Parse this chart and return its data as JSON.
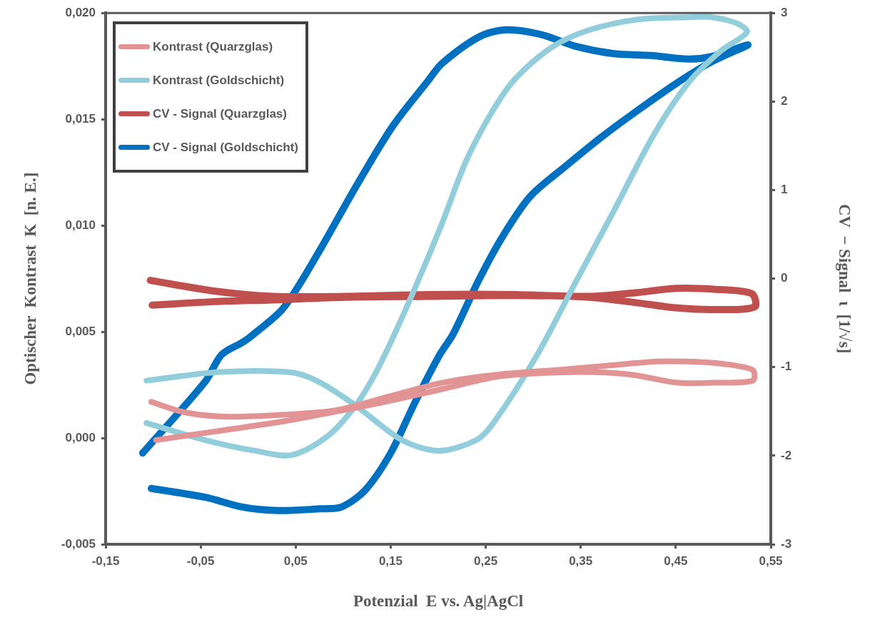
{
  "chart_data": {
    "type": "line",
    "xlabel": "Potenzial  E vs. Ag|AgCl",
    "ylabel": "Optischer  Kontrast  K  [n. E.]",
    "y2label": "CV  − Signal  ι  [1/√s]",
    "xlim": [
      -0.15,
      0.55
    ],
    "xticks": [
      {
        "value": -0.15,
        "label": "-0,15"
      },
      {
        "value": -0.05,
        "label": "-0,05"
      },
      {
        "value": 0.05,
        "label": "0,05"
      },
      {
        "value": 0.15,
        "label": "0,15"
      },
      {
        "value": 0.25,
        "label": "0,25"
      },
      {
        "value": 0.35,
        "label": "0,35"
      },
      {
        "value": 0.45,
        "label": "0,45"
      },
      {
        "value": 0.55,
        "label": "0,55"
      }
    ],
    "ylim": [
      -0.005,
      0.02
    ],
    "yticks": [
      {
        "value": -0.005,
        "label": "-0,005"
      },
      {
        "value": 0,
        "label": "0,000"
      },
      {
        "value": 0.005,
        "label": "0,005"
      },
      {
        "value": 0.01,
        "label": "0,010"
      },
      {
        "value": 0.015,
        "label": "0,015"
      },
      {
        "value": 0.02,
        "label": "0,020"
      }
    ],
    "y2lim": [
      -3,
      3
    ],
    "y2ticks": [
      -3,
      -2,
      -1,
      0,
      1,
      2,
      3
    ],
    "grid": false,
    "legend": "top left",
    "marker": "none",
    "line_style": "solid",
    "series": [
      {
        "name": "Kontrast (Quarzglas)",
        "color": "#e29494",
        "x": [
          -0.102,
          -0.066,
          -0.021,
          0.039,
          0.092,
          0.144,
          0.204,
          0.265,
          0.325,
          0.377,
          0.43,
          0.46,
          0.497,
          0.531,
          0.531,
          0.49,
          0.452,
          0.4,
          0.34,
          0.265,
          0.204,
          0.144,
          0.099,
          0.039,
          -0.036,
          -0.097
        ],
        "values": [
          0.0017,
          0.0012,
          0.001,
          0.0011,
          0.0013,
          0.0019,
          0.0026,
          0.003,
          0.0032,
          0.0034,
          0.0036,
          0.0036,
          0.0035,
          0.0032,
          0.0027,
          0.0026,
          0.0026,
          0.003,
          0.0031,
          0.0029,
          0.0023,
          0.0017,
          0.0013,
          0.0008,
          0.0003,
          -0.0001
        ]
      },
      {
        "name": "Kontrast (Goldschicht)",
        "color": "#92cddc",
        "x": [
          -0.107,
          -0.045,
          0.007,
          0.046,
          0.084,
          0.111,
          0.131,
          0.15,
          0.177,
          0.204,
          0.229,
          0.256,
          0.281,
          0.32,
          0.359,
          0.411,
          0.463,
          0.488,
          0.515,
          0.525,
          0.497,
          0.463,
          0.426,
          0.385,
          0.343,
          0.304,
          0.258,
          0.24,
          0.201,
          0.162,
          0.111,
          0.072,
          0.043,
          -0.032,
          -0.107
        ],
        "values": [
          0.0007,
          -0.0001,
          -0.0006,
          -0.0008,
          0.0001,
          0.0014,
          0.0028,
          0.0045,
          0.0072,
          0.0101,
          0.013,
          0.0153,
          0.0169,
          0.0184,
          0.0192,
          0.0197,
          0.0198,
          0.0198,
          0.0195,
          0.0191,
          0.0182,
          0.0167,
          0.0142,
          0.0107,
          0.0072,
          0.0039,
          0.0007,
          -0.0001,
          -0.0006,
          -0.0001,
          0.0016,
          0.0027,
          0.0031,
          0.0031,
          0.0027
        ]
      },
      {
        "name": "CV - Signal (Quarzglas)",
        "color": "#c0504d",
        "axis": "y2",
        "x": [
          -0.103,
          -0.036,
          0.026,
          0.102,
          0.189,
          0.281,
          0.359,
          0.407,
          0.45,
          0.49,
          0.53,
          0.533,
          0.49,
          0.45,
          0.407,
          0.359,
          0.281,
          0.189,
          0.102,
          0.026,
          -0.036,
          -0.101
        ],
        "values": [
          -0.02,
          -0.14,
          -0.2,
          -0.2,
          -0.18,
          -0.18,
          -0.2,
          -0.16,
          -0.11,
          -0.12,
          -0.17,
          -0.32,
          -0.35,
          -0.33,
          -0.27,
          -0.21,
          -0.19,
          -0.2,
          -0.21,
          -0.24,
          -0.26,
          -0.3
        ]
      },
      {
        "name": "CV - Signal (Goldschicht)",
        "color": "#0070c0",
        "axis": "y2",
        "x": [
          -0.111,
          -0.045,
          -0.028,
          -0.006,
          0.002,
          0.034,
          0.052,
          0.077,
          0.114,
          0.152,
          0.189,
          0.204,
          0.243,
          0.271,
          0.307,
          0.346,
          0.385,
          0.424,
          0.463,
          0.488,
          0.526,
          0.488,
          0.45,
          0.406,
          0.372,
          0.333,
          0.297,
          0.268,
          0.243,
          0.216,
          0.201,
          0.175,
          0.15,
          0.123,
          0.098,
          0.075,
          0.032,
          -0.006,
          -0.045,
          -0.102
        ],
        "values": [
          -1.97,
          -1.16,
          -0.86,
          -0.72,
          -0.66,
          -0.37,
          -0.1,
          0.35,
          1.05,
          1.72,
          2.23,
          2.43,
          2.73,
          2.81,
          2.76,
          2.62,
          2.54,
          2.52,
          2.48,
          2.51,
          2.64,
          2.45,
          2.2,
          1.87,
          1.6,
          1.26,
          0.93,
          0.48,
          -0.01,
          -0.62,
          -0.87,
          -1.41,
          -1.97,
          -2.39,
          -2.58,
          -2.6,
          -2.62,
          -2.58,
          -2.47,
          -2.37
        ]
      }
    ]
  }
}
